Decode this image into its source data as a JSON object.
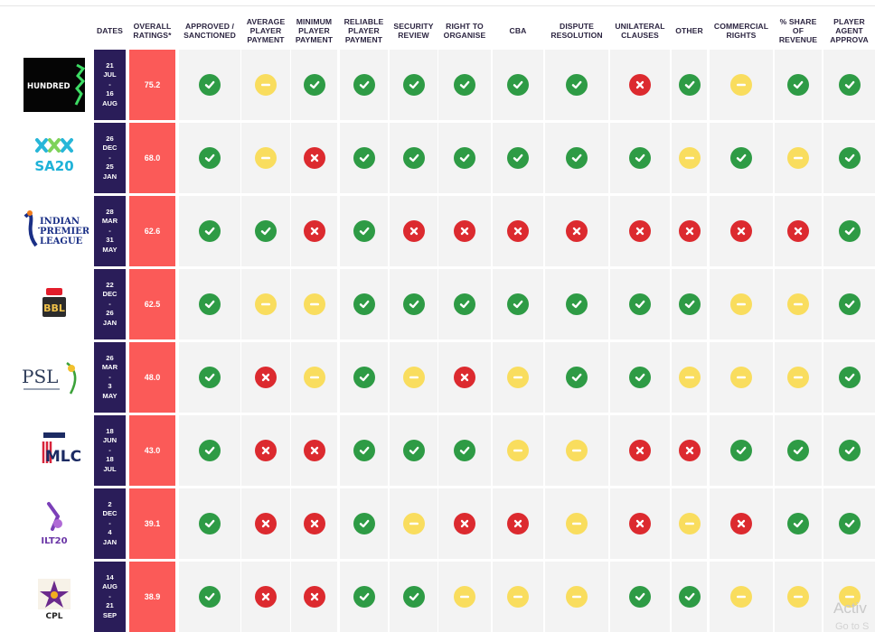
{
  "headers": [
    {
      "key": "dates",
      "label": "DATES"
    },
    {
      "key": "overall",
      "label": "OVERALL\nRATINGS*"
    },
    {
      "key": "approved",
      "label": "APPROVED /\nSANCTIONED"
    },
    {
      "key": "avg_pay",
      "label": "AVERAGE\nPLAYER\nPAYMENT"
    },
    {
      "key": "min_pay",
      "label": "MINIMUM\nPLAYER\nPAYMENT"
    },
    {
      "key": "rel_pay",
      "label": "RELIABLE\nPLAYER\nPAYMENT"
    },
    {
      "key": "security",
      "label": "SECURITY\nREVIEW"
    },
    {
      "key": "organise",
      "label": "RIGHT TO\nORGANISE"
    },
    {
      "key": "cba",
      "label": "CBA"
    },
    {
      "key": "dispute",
      "label": "DISPUTE\nRESOLUTION"
    },
    {
      "key": "unilateral",
      "label": "UNILATERAL\nCLAUSES"
    },
    {
      "key": "other",
      "label": "OTHER"
    },
    {
      "key": "commercial",
      "label": "COMMERCIAL\nRIGHTS"
    },
    {
      "key": "share",
      "label": "% SHARE\nOF\nREVENUE"
    },
    {
      "key": "agent",
      "label": "PLAYER\nAGENT\nAPPROVA"
    }
  ],
  "status_colors": {
    "yes": "#2e9b45",
    "no": "#dc2a2f",
    "partial": "#f9dd5e",
    "dates_bg": "#2a1d59",
    "rating_bg": "#fb5a58"
  },
  "leagues": [
    {
      "logo": "hundred-logo",
      "logo_text": "HUNDRED",
      "dates": [
        "21",
        "JUL",
        "-",
        "16",
        "AUG"
      ],
      "rating": "75.2",
      "statuses": [
        "yes",
        "partial",
        "yes",
        "yes",
        "yes",
        "yes",
        "yes",
        "yes",
        "no",
        "yes",
        "partial",
        "yes",
        "yes"
      ]
    },
    {
      "logo": "sa20-logo",
      "logo_text": "SA20",
      "dates": [
        "26",
        "DEC",
        "-",
        "25",
        "JAN"
      ],
      "rating": "68.0",
      "statuses": [
        "yes",
        "partial",
        "no",
        "yes",
        "yes",
        "yes",
        "yes",
        "yes",
        "yes",
        "partial",
        "yes",
        "partial",
        "yes"
      ]
    },
    {
      "logo": "ipl-logo",
      "logo_text": "INDIAN PREMIER LEAGUE",
      "dates": [
        "28",
        "MAR",
        "-",
        "31",
        "MAY"
      ],
      "rating": "62.6",
      "statuses": [
        "yes",
        "yes",
        "no",
        "yes",
        "no",
        "no",
        "no",
        "no",
        "no",
        "no",
        "no",
        "no",
        "yes"
      ]
    },
    {
      "logo": "bbl-logo",
      "logo_text": "BBL",
      "dates": [
        "22",
        "DEC",
        "-",
        "26",
        "JAN"
      ],
      "rating": "62.5",
      "statuses": [
        "yes",
        "partial",
        "partial",
        "yes",
        "yes",
        "yes",
        "yes",
        "yes",
        "yes",
        "yes",
        "partial",
        "partial",
        "yes"
      ]
    },
    {
      "logo": "psl-logo",
      "logo_text": "PSL",
      "dates": [
        "26",
        "MAR",
        "-",
        "3",
        "MAY"
      ],
      "rating": "48.0",
      "statuses": [
        "yes",
        "no",
        "partial",
        "yes",
        "partial",
        "no",
        "partial",
        "yes",
        "yes",
        "partial",
        "partial",
        "partial",
        "yes"
      ]
    },
    {
      "logo": "mlc-logo",
      "logo_text": "MLC",
      "dates": [
        "18",
        "JUN",
        "-",
        "18",
        "JUL"
      ],
      "rating": "43.0",
      "statuses": [
        "yes",
        "no",
        "no",
        "yes",
        "yes",
        "yes",
        "partial",
        "partial",
        "no",
        "no",
        "yes",
        "yes",
        "yes"
      ]
    },
    {
      "logo": "ilt20-logo",
      "logo_text": "ILT20",
      "dates": [
        "2",
        "DEC",
        "-",
        "4",
        "JAN"
      ],
      "rating": "39.1",
      "statuses": [
        "yes",
        "no",
        "no",
        "yes",
        "partial",
        "no",
        "no",
        "partial",
        "no",
        "partial",
        "no",
        "yes",
        "yes"
      ]
    },
    {
      "logo": "cpl-logo",
      "logo_text": "CPL",
      "dates": [
        "14",
        "AUG",
        "-",
        "21",
        "SEP"
      ],
      "rating": "38.9",
      "statuses": [
        "yes",
        "no",
        "no",
        "yes",
        "yes",
        "partial",
        "partial",
        "partial",
        "yes",
        "yes",
        "partial",
        "partial",
        "partial"
      ]
    }
  ],
  "watermark": {
    "line1": "Activ",
    "line2": "Go to S"
  }
}
